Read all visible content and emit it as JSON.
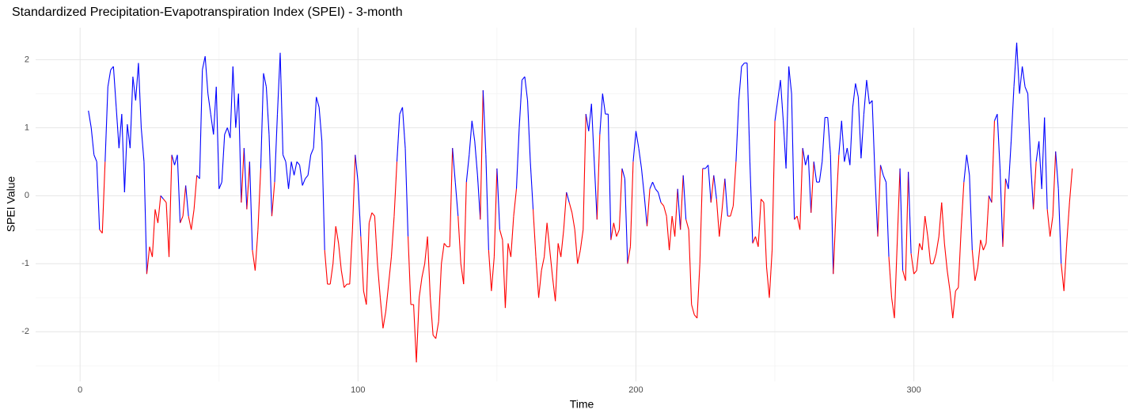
{
  "chart_data": {
    "type": "line",
    "title": "Standardized Precipitation-Evapotranspiration Index (SPEI) - 3-month",
    "x_label": "Time",
    "y_label": "SPEI Value",
    "x": [
      3,
      4,
      5,
      6,
      7,
      8,
      9,
      10,
      11,
      12,
      13,
      14,
      15,
      16,
      17,
      18,
      19,
      20,
      21,
      22,
      23,
      24,
      25,
      26,
      27,
      28,
      29,
      30,
      31,
      32,
      33,
      34,
      35,
      36,
      37,
      38,
      39,
      40,
      41,
      42,
      43,
      44,
      45,
      46,
      47,
      48,
      49,
      50,
      51,
      52,
      53,
      54,
      55,
      56,
      57,
      58,
      59,
      60,
      61,
      62,
      63,
      64,
      65,
      66,
      67,
      68,
      69,
      70,
      71,
      72,
      73,
      74,
      75,
      76,
      77,
      78,
      79,
      80,
      81,
      82,
      83,
      84,
      85,
      86,
      87,
      88,
      89,
      90,
      91,
      92,
      93,
      94,
      95,
      96,
      97,
      98,
      99,
      100,
      101,
      102,
      103,
      104,
      105,
      106,
      107,
      108,
      109,
      110,
      111,
      112,
      113,
      114,
      115,
      116,
      117,
      118,
      119,
      120,
      121,
      122,
      123,
      124,
      125,
      126,
      127,
      128,
      129,
      130,
      131,
      132,
      133,
      134,
      135,
      136,
      137,
      138,
      139,
      140,
      141,
      142,
      143,
      144,
      145,
      146,
      147,
      148,
      149,
      150,
      151,
      152,
      153,
      154,
      155,
      156,
      157,
      158,
      159,
      160,
      161,
      162,
      163,
      164,
      165,
      166,
      167,
      168,
      169,
      170,
      171,
      172,
      173,
      174,
      175,
      176,
      177,
      178,
      179,
      180,
      181,
      182,
      183,
      184,
      185,
      186,
      187,
      188,
      189,
      190,
      191,
      192,
      193,
      194,
      195,
      196,
      197,
      198,
      199,
      200,
      201,
      202,
      203,
      204,
      205,
      206,
      207,
      208,
      209,
      210,
      211,
      212,
      213,
      214,
      215,
      216,
      217,
      218,
      219,
      220,
      221,
      222,
      223,
      224,
      225,
      226,
      227,
      228,
      229,
      230,
      231,
      232,
      233,
      234,
      235,
      236,
      237,
      238,
      239,
      240,
      241,
      242,
      243,
      244,
      245,
      246,
      247,
      248,
      249,
      250,
      251,
      252,
      253,
      254,
      255,
      256,
      257,
      258,
      259,
      260,
      261,
      262,
      263,
      264,
      265,
      266,
      267,
      268,
      269,
      270,
      271,
      272,
      273,
      274,
      275,
      276,
      277,
      278,
      279,
      280,
      281,
      282,
      283,
      284,
      285,
      286,
      287,
      288,
      289,
      290,
      291,
      292,
      293,
      294,
      295,
      296,
      297,
      298,
      299,
      300,
      301,
      302,
      303,
      304,
      305,
      306,
      307,
      308,
      309,
      310,
      311,
      312,
      313,
      314,
      315,
      316,
      317,
      318,
      319,
      320,
      321,
      322,
      323,
      324,
      325,
      326,
      327,
      328,
      329,
      330,
      331,
      332,
      333,
      334,
      335,
      336,
      337,
      338,
      339,
      340,
      341,
      342,
      343,
      344,
      345,
      346,
      347,
      348,
      349,
      350,
      351,
      352,
      353,
      354,
      355,
      356,
      357
    ],
    "values": [
      1.25,
      1.0,
      0.6,
      0.5,
      -0.5,
      -0.55,
      0.5,
      1.6,
      1.85,
      1.9,
      1.3,
      0.7,
      1.2,
      0.05,
      1.05,
      0.7,
      1.75,
      1.4,
      1.95,
      1.0,
      0.5,
      -1.15,
      -0.75,
      -0.9,
      -0.2,
      -0.4,
      0,
      -0.05,
      -0.1,
      -0.9,
      0.6,
      0.45,
      0.6,
      -0.4,
      -0.3,
      0.15,
      -0.3,
      -0.5,
      -0.2,
      0.3,
      0.25,
      1.85,
      2.05,
      1.5,
      1.2,
      0.9,
      1.6,
      0.1,
      0.2,
      0.9,
      1.0,
      0.85,
      1.9,
      1.0,
      1.5,
      -0.1,
      0.7,
      -0.2,
      0.5,
      -0.8,
      -1.1,
      -0.5,
      0.4,
      1.8,
      1.6,
      0.9,
      -0.3,
      0.2,
      1.2,
      2.1,
      0.6,
      0.5,
      0.1,
      0.5,
      0.3,
      0.5,
      0.45,
      0.15,
      0.25,
      0.3,
      0.6,
      0.7,
      1.45,
      1.3,
      0.8,
      -0.8,
      -1.3,
      -1.3,
      -1.0,
      -0.45,
      -0.7,
      -1.1,
      -1.35,
      -1.3,
      -1.3,
      -0.5,
      0.6,
      0.2,
      -0.6,
      -1.4,
      -1.6,
      -0.4,
      -0.25,
      -0.3,
      -1.0,
      -1.5,
      -1.95,
      -1.7,
      -1.3,
      -0.9,
      -0.3,
      0.5,
      1.2,
      1.3,
      0.7,
      -0.6,
      -1.6,
      -1.6,
      -2.45,
      -1.5,
      -1.2,
      -1.0,
      -0.6,
      -1.5,
      -2.05,
      -2.1,
      -1.85,
      -1.0,
      -0.7,
      -0.75,
      -0.75,
      0.7,
      0.2,
      -0.3,
      -1.0,
      -1.3,
      0.2,
      0.6,
      1.1,
      0.8,
      0.3,
      -0.35,
      1.55,
      0.6,
      -0.8,
      -1.4,
      -0.9,
      0.4,
      -0.5,
      -0.65,
      -1.65,
      -0.7,
      -0.9,
      -0.3,
      0.1,
      1.0,
      1.7,
      1.75,
      1.4,
      0.5,
      -0.2,
      -0.9,
      -1.5,
      -1.1,
      -0.9,
      -0.4,
      -0.8,
      -1.2,
      -1.55,
      -0.7,
      -0.9,
      -0.5,
      0.05,
      -0.1,
      -0.25,
      -0.5,
      -1.0,
      -0.8,
      -0.5,
      1.2,
      0.95,
      1.35,
      0.5,
      -0.35,
      0.9,
      1.5,
      1.2,
      1.2,
      -0.65,
      -0.4,
      -0.6,
      -0.5,
      0.4,
      0.25,
      -1.0,
      -0.75,
      0.5,
      0.95,
      0.7,
      0.4,
      0.0,
      -0.45,
      0.1,
      0.2,
      0.1,
      0.05,
      -0.1,
      -0.15,
      -0.3,
      -0.8,
      -0.3,
      -0.6,
      0.1,
      -0.5,
      0.3,
      -0.35,
      -0.5,
      -1.6,
      -1.75,
      -1.8,
      -1.0,
      0.4,
      0.4,
      0.45,
      -0.1,
      0.3,
      -0.05,
      -0.6,
      -0.2,
      0.25,
      -0.3,
      -0.3,
      -0.15,
      0.5,
      1.4,
      1.9,
      1.95,
      1.95,
      0.5,
      -0.7,
      -0.6,
      -0.75,
      -0.05,
      -0.1,
      -1.05,
      -1.5,
      -0.8,
      1.1,
      1.4,
      1.7,
      1.1,
      0.4,
      1.9,
      1.5,
      -0.35,
      -0.3,
      -0.5,
      0.7,
      0.45,
      0.6,
      -0.25,
      0.5,
      0.2,
      0.2,
      0.5,
      1.15,
      1.15,
      0.6,
      -1.15,
      -0.2,
      0.6,
      1.1,
      0.5,
      0.7,
      0.45,
      1.3,
      1.65,
      1.45,
      0.55,
      1.2,
      1.7,
      1.35,
      1.4,
      0.3,
      -0.6,
      0.45,
      0.3,
      0.2,
      -0.9,
      -1.5,
      -1.8,
      -0.7,
      0.4,
      -1.1,
      -1.25,
      0.35,
      -0.85,
      -1.15,
      -1.1,
      -0.7,
      -0.8,
      -0.3,
      -0.6,
      -1.0,
      -1.0,
      -0.85,
      -0.6,
      -0.1,
      -0.7,
      -1.1,
      -1.4,
      -1.8,
      -1.4,
      -1.35,
      -0.5,
      0.2,
      0.6,
      0.3,
      -0.8,
      -1.25,
      -1.05,
      -0.65,
      -0.8,
      -0.7,
      0.0,
      -0.1,
      1.1,
      1.2,
      0.4,
      -0.75,
      0.25,
      0.1,
      0.8,
      1.6,
      2.25,
      1.5,
      1.9,
      1.6,
      1.5,
      0.5,
      -0.2,
      0.5,
      0.8,
      0.1,
      1.15,
      -0.2,
      -0.6,
      -0.3,
      0.65,
      0.1,
      -1.0,
      -1.4,
      -0.7,
      -0.1,
      0.4
    ],
    "positive_color": "#0000ff",
    "negative_color": "#ff0000",
    "xlim": [
      -16,
      377
    ],
    "ylim": [
      -2.73,
      2.47
    ],
    "xticks": [
      0,
      100,
      200,
      300
    ],
    "yticks": [
      -2,
      -1,
      0,
      1,
      2
    ],
    "xminor": [
      50,
      150,
      250,
      350
    ],
    "yminor": [
      -2.5,
      -1.5,
      -0.5,
      0.5,
      1.5
    ],
    "grid": true
  }
}
